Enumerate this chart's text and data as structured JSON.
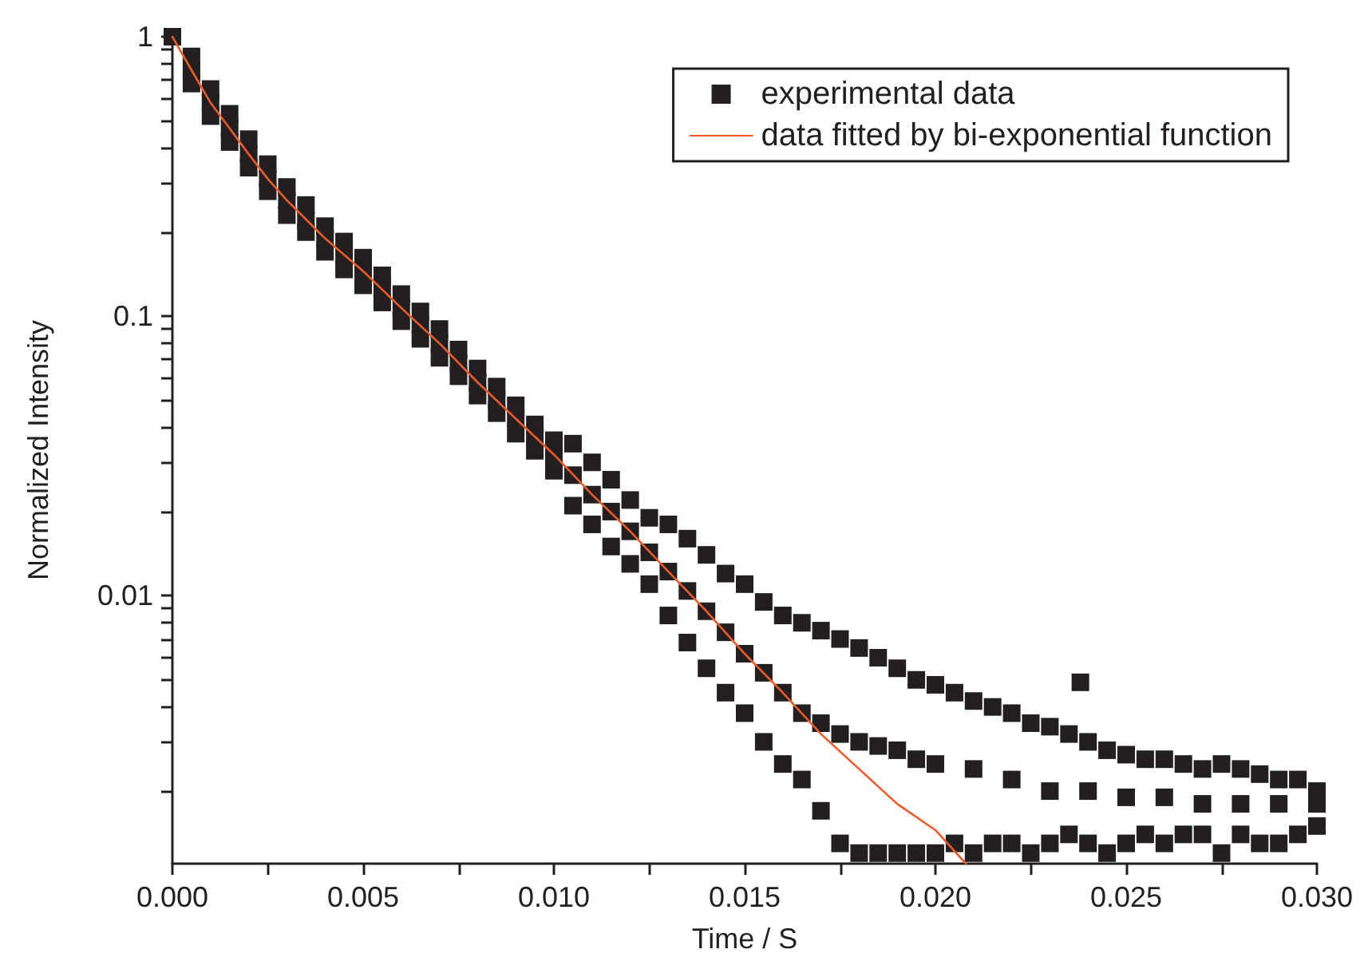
{
  "chart_data": {
    "type": "scatter",
    "xlabel": "Time / S",
    "ylabel": "Normalized Intensity",
    "xlim": [
      0,
      0.03
    ],
    "xticks": [
      {
        "value": 0,
        "label": "0.000"
      },
      {
        "value": 0.0025,
        "label": null
      },
      {
        "value": 0.005,
        "label": "0.005"
      },
      {
        "value": 0.0075,
        "label": null
      },
      {
        "value": 0.01,
        "label": "0.010"
      },
      {
        "value": 0.0125,
        "label": null
      },
      {
        "value": 0.015,
        "label": "0.015"
      },
      {
        "value": 0.0175,
        "label": null
      },
      {
        "value": 0.02,
        "label": "0.020"
      },
      {
        "value": 0.0225,
        "label": null
      },
      {
        "value": 0.025,
        "label": "0.025"
      },
      {
        "value": 0.0275,
        "label": null
      },
      {
        "value": 0.03,
        "label": "0.030"
      }
    ],
    "ylim": [
      0.0011,
      1
    ],
    "log": "y",
    "yticks": [
      {
        "value": 0.002,
        "label": null
      },
      {
        "value": 0.003,
        "label": null
      },
      {
        "value": 0.004,
        "label": null
      },
      {
        "value": 0.005,
        "label": null
      },
      {
        "value": 0.006,
        "label": null
      },
      {
        "value": 0.007,
        "label": null
      },
      {
        "value": 0.008,
        "label": null
      },
      {
        "value": 0.009,
        "label": null
      },
      0.01,
      {
        "value": 0.02,
        "label": null
      },
      {
        "value": 0.03,
        "label": null
      },
      {
        "value": 0.04,
        "label": null
      },
      {
        "value": 0.05,
        "label": null
      },
      {
        "value": 0.06,
        "label": null
      },
      {
        "value": 0.07,
        "label": null
      },
      {
        "value": 0.08,
        "label": null
      },
      {
        "value": 0.09,
        "label": null
      },
      0.1,
      {
        "value": 0.2,
        "label": null
      },
      {
        "value": 0.3,
        "label": null
      },
      {
        "value": 0.4,
        "label": null
      },
      {
        "value": 0.5,
        "label": null
      },
      {
        "value": 0.6,
        "label": null
      },
      {
        "value": 0.7,
        "label": null
      },
      {
        "value": 0.8,
        "label": null
      },
      {
        "value": 0.9,
        "label": null
      },
      1
    ],
    "grid": false,
    "legend": "top right",
    "marker": "square",
    "series": [
      {
        "name": "experimental data",
        "color": "#231f20",
        "x": [
          0,
          0.0005,
          0.0005,
          0.0005,
          0.001,
          0.001,
          0.001,
          0.0015,
          0.0015,
          0.0015,
          0.002,
          0.002,
          0.002,
          0.0025,
          0.0025,
          0.0025,
          0.003,
          0.003,
          0.003,
          0.0035,
          0.0035,
          0.0035,
          0.004,
          0.004,
          0.004,
          0.0045,
          0.0045,
          0.0045,
          0.005,
          0.005,
          0.005,
          0.0055,
          0.0055,
          0.0055,
          0.006,
          0.006,
          0.006,
          0.0065,
          0.0065,
          0.0065,
          0.007,
          0.007,
          0.007,
          0.0075,
          0.0075,
          0.0075,
          0.008,
          0.008,
          0.008,
          0.0085,
          0.0085,
          0.0085,
          0.009,
          0.009,
          0.009,
          0.0095,
          0.0095,
          0.0095,
          0.01,
          0.01,
          0.01,
          0.0105,
          0.0105,
          0.0105,
          0.011,
          0.011,
          0.011,
          0.0115,
          0.0115,
          0.0115,
          0.012,
          0.012,
          0.012,
          0.0125,
          0.0125,
          0.0125,
          0.013,
          0.013,
          0.013,
          0.0135,
          0.0135,
          0.0135,
          0.014,
          0.014,
          0.014,
          0.0145,
          0.0145,
          0.0145,
          0.015,
          0.015,
          0.015,
          0.0155,
          0.0155,
          0.0155,
          0.016,
          0.016,
          0.016,
          0.0165,
          0.0165,
          0.0165,
          0.017,
          0.017,
          0.017,
          0.0175,
          0.0175,
          0.0175,
          0.018,
          0.018,
          0.018,
          0.0185,
          0.0185,
          0.0185,
          0.019,
          0.019,
          0.019,
          0.0195,
          0.0195,
          0.0195,
          0.02,
          0.02,
          0.02,
          0.0205,
          0.0205,
          0.021,
          0.021,
          0.021,
          0.0215,
          0.0215,
          0.022,
          0.022,
          0.022,
          0.0225,
          0.0225,
          0.023,
          0.023,
          0.023,
          0.0235,
          0.0235,
          0.0238,
          0.024,
          0.024,
          0.024,
          0.0245,
          0.0245,
          0.025,
          0.025,
          0.025,
          0.0255,
          0.0255,
          0.026,
          0.026,
          0.026,
          0.0265,
          0.0265,
          0.027,
          0.027,
          0.027,
          0.0275,
          0.0275,
          0.028,
          0.028,
          0.028,
          0.0285,
          0.0285,
          0.029,
          0.029,
          0.029,
          0.0295,
          0.0295,
          0.03,
          0.03,
          0.03
        ],
        "values": [
          1,
          0.85,
          0.76,
          0.68,
          0.65,
          0.58,
          0.52,
          0.53,
          0.47,
          0.42,
          0.43,
          0.38,
          0.34,
          0.35,
          0.31,
          0.28,
          0.29,
          0.26,
          0.23,
          0.25,
          0.22,
          0.2,
          0.21,
          0.19,
          0.17,
          0.185,
          0.165,
          0.147,
          0.162,
          0.145,
          0.129,
          0.14,
          0.125,
          0.112,
          0.12,
          0.107,
          0.096,
          0.104,
          0.093,
          0.083,
          0.09,
          0.08,
          0.071,
          0.076,
          0.068,
          0.061,
          0.065,
          0.058,
          0.052,
          0.056,
          0.05,
          0.045,
          0.048,
          0.043,
          0.038,
          0.041,
          0.037,
          0.033,
          0.036,
          0.032,
          0.028,
          0.035,
          0.027,
          0.021,
          0.03,
          0.023,
          0.018,
          0.026,
          0.02,
          0.015,
          0.022,
          0.017,
          0.013,
          0.019,
          0.0143,
          0.011,
          0.018,
          0.0122,
          0.0085,
          0.016,
          0.0104,
          0.0068,
          0.014,
          0.0088,
          0.0055,
          0.012,
          0.0074,
          0.0045,
          0.011,
          0.0062,
          0.0038,
          0.0095,
          0.0053,
          0.003,
          0.0085,
          0.0045,
          0.0025,
          0.008,
          0.0038,
          0.0022,
          0.0075,
          0.0035,
          0.0017,
          0.007,
          0.0032,
          0.0013,
          0.0065,
          0.003,
          0.0012,
          0.006,
          0.0029,
          0.0012,
          0.0055,
          0.0028,
          0.0012,
          0.005,
          0.0026,
          0.0012,
          0.0048,
          0.0025,
          0.0012,
          0.0045,
          0.0013,
          0.0042,
          0.0024,
          0.0012,
          0.004,
          0.0013,
          0.0038,
          0.0022,
          0.0013,
          0.0035,
          0.0012,
          0.0034,
          0.002,
          0.0013,
          0.0032,
          0.0014,
          0.0049,
          0.003,
          0.002,
          0.0013,
          0.0028,
          0.0012,
          0.0027,
          0.0019,
          0.0013,
          0.0026,
          0.0014,
          0.0026,
          0.0019,
          0.0013,
          0.0025,
          0.0014,
          0.0024,
          0.0018,
          0.0014,
          0.0025,
          0.0012,
          0.0024,
          0.0018,
          0.0014,
          0.0023,
          0.0013,
          0.0022,
          0.0018,
          0.0013,
          0.0022,
          0.0014,
          0.002,
          0.0018,
          0.0015
        ]
      },
      {
        "name": "data fitted by bi-exponential function",
        "type": "line",
        "color": "#f05a28",
        "marker": "none",
        "x": [
          0,
          0.0005,
          0.001,
          0.0015,
          0.002,
          0.0025,
          0.003,
          0.004,
          0.005,
          0.006,
          0.007,
          0.008,
          0.009,
          0.01,
          0.011,
          0.012,
          0.013,
          0.014,
          0.015,
          0.016,
          0.017,
          0.018,
          0.019,
          0.02,
          0.0208
        ],
        "values": [
          1,
          0.76,
          0.58,
          0.47,
          0.38,
          0.31,
          0.26,
          0.19,
          0.145,
          0.107,
          0.08,
          0.058,
          0.043,
          0.032,
          0.023,
          0.017,
          0.0122,
          0.0088,
          0.0062,
          0.0045,
          0.0032,
          0.0024,
          0.0018,
          0.00145,
          0.0011
        ]
      }
    ]
  }
}
